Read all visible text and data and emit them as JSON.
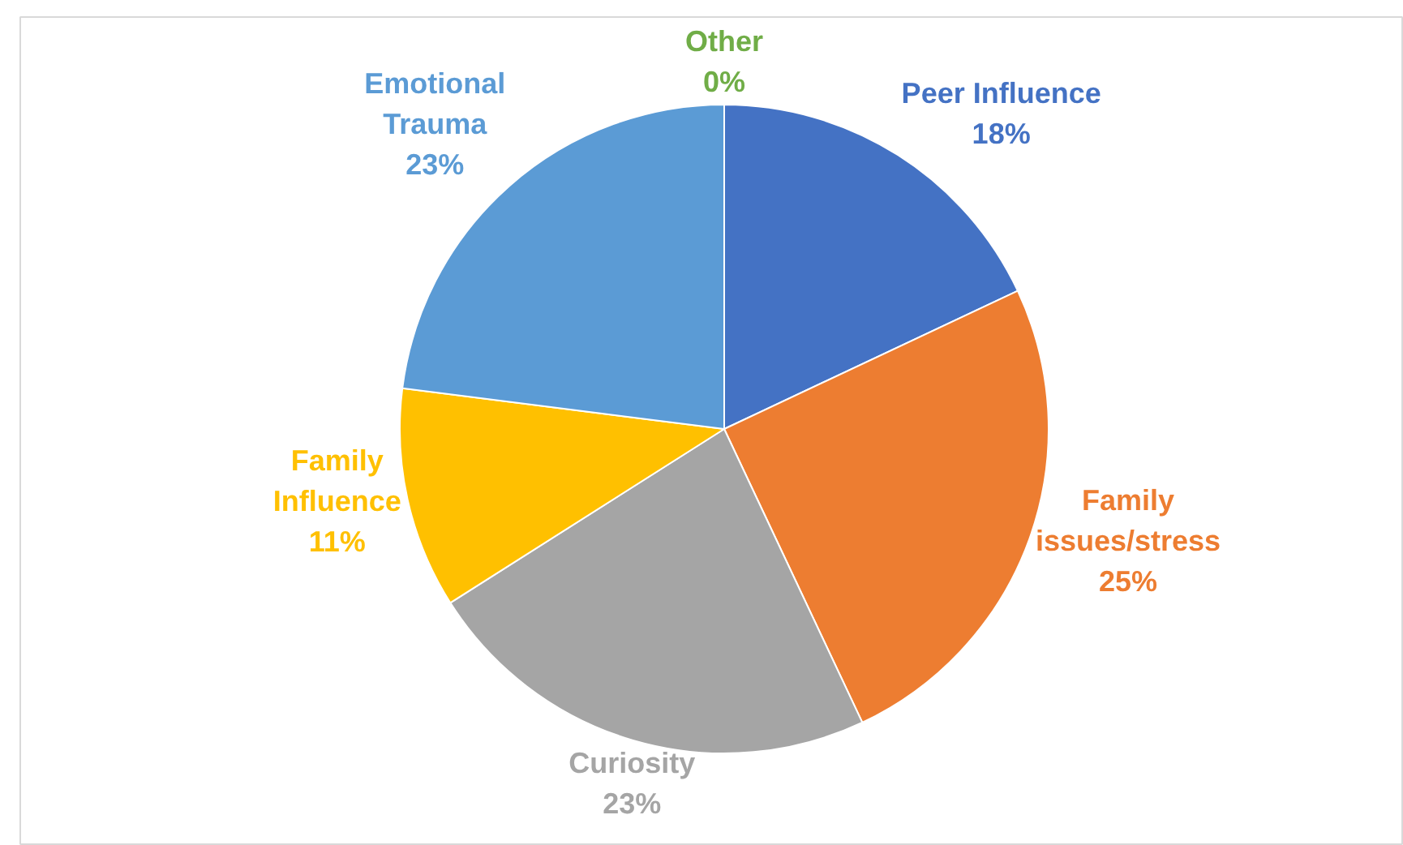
{
  "chart_data": {
    "type": "pie",
    "categories": [
      "Peer Influence",
      "Family issues/stress",
      "Curiosity",
      "Family Influence",
      "Emotional Trauma",
      "Other"
    ],
    "values": [
      18,
      25,
      23,
      11,
      23,
      0
    ],
    "colors": [
      "#4472c4",
      "#ed7d31",
      "#a5a5a5",
      "#ffc000",
      "#5b9bd5",
      "#70ad47"
    ],
    "value_labels": [
      "18%",
      "25%",
      "23%",
      "11%",
      "23%",
      "0%"
    ]
  }
}
